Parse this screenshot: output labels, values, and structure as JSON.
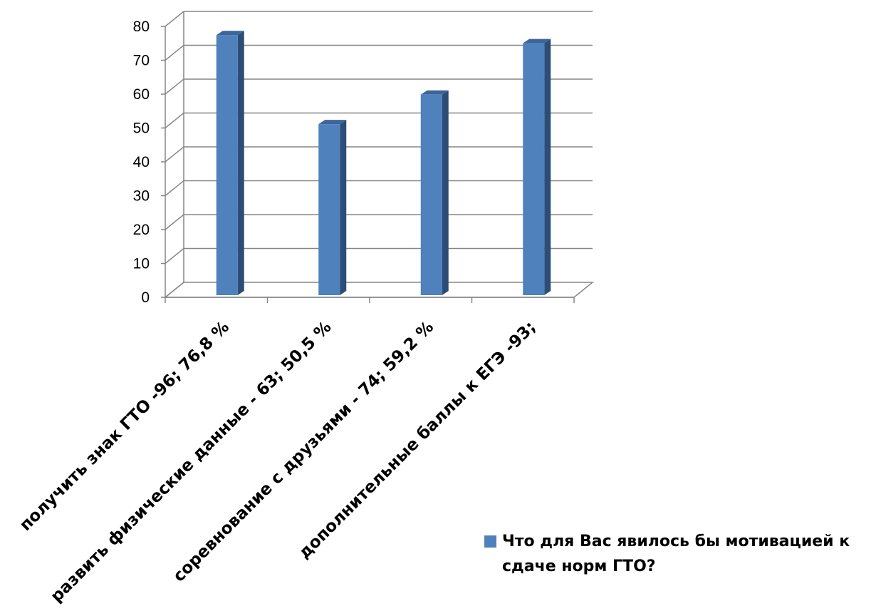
{
  "chart_data": {
    "type": "bar",
    "categories": [
      "получить знак ГТО -96; 76,8 %",
      "развить физические данные - 63; 50,5 %",
      "соревнование с друзьями - 74; 59,2 %",
      "дополнительные баллы к ЕГЭ -93;"
    ],
    "series": [
      {
        "name": "Что для Вас явилось бы мотивацией к сдаче норм ГТО?",
        "values": [
          76.8,
          50.5,
          59.2,
          74.4
        ],
        "color": "#4F81BD"
      }
    ],
    "y_ticks": [
      "0",
      "10",
      "20",
      "30",
      "40",
      "50",
      "60",
      "70",
      "80"
    ],
    "ylim": [
      0,
      80
    ],
    "grid": true,
    "legend_position": "bottom-right",
    "style": "3d-clustered-column",
    "colors": {
      "bar_front": "#4F81BD",
      "bar_side": "#2C4D75",
      "bar_top": "#3B659B",
      "gridline": "#868686",
      "axis": "#868686"
    }
  }
}
